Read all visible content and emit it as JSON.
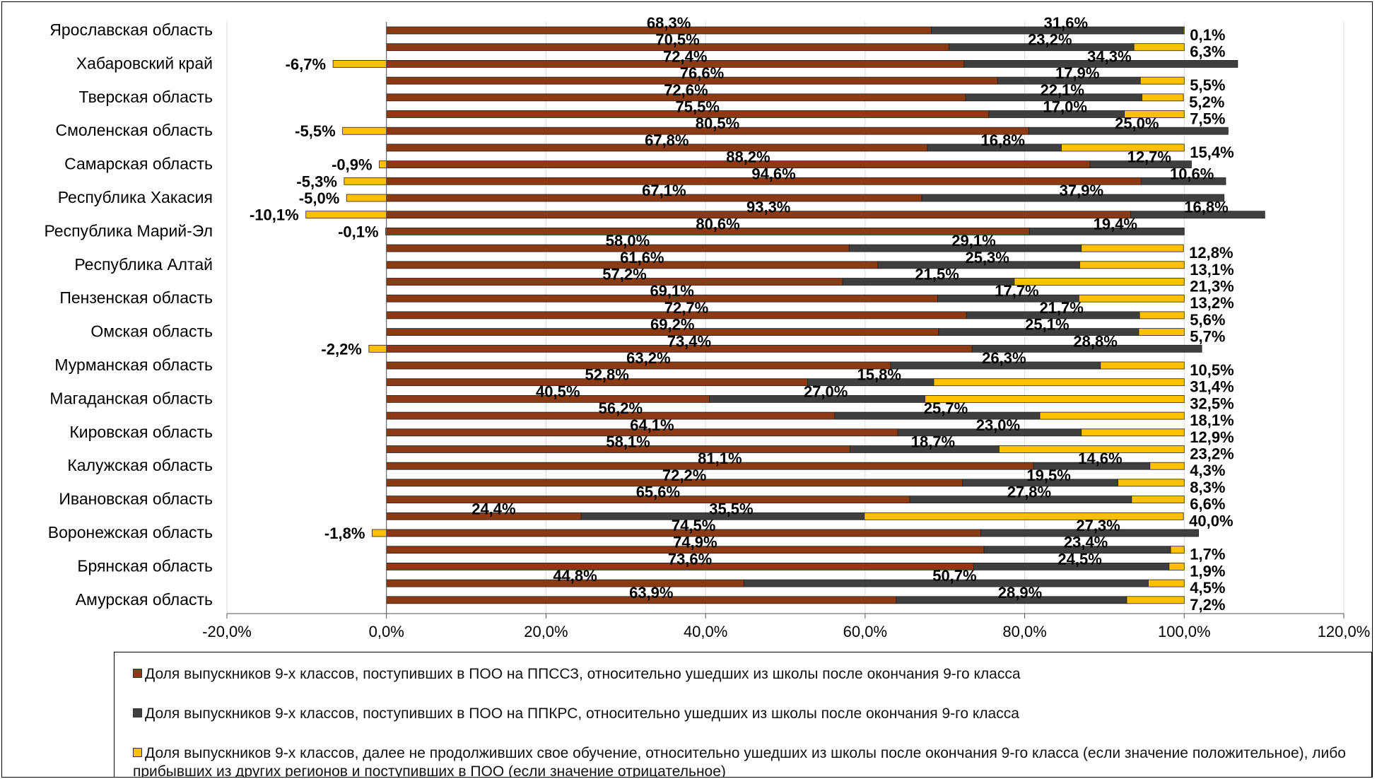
{
  "chart_data": {
    "type": "bar",
    "orientation": "horizontal",
    "stacked": true,
    "xlim": [
      -0.2,
      1.2
    ],
    "x_ticks": [
      {
        "value": -0.2,
        "label": "-20,0%"
      },
      {
        "value": 0.0,
        "label": "0,0%"
      },
      {
        "value": 0.2,
        "label": "20,0%"
      },
      {
        "value": 0.4,
        "label": "40,0%"
      },
      {
        "value": 0.6,
        "label": "60,0%"
      },
      {
        "value": 0.8,
        "label": "80,0%"
      },
      {
        "value": 1.0,
        "label": "100,0%"
      },
      {
        "value": 1.2,
        "label": "120,0%"
      }
    ],
    "grid": "vertical",
    "legend_position": "bottom",
    "region_labels": [
      "Ярославская область",
      "Хабаровский край",
      "Тверская область",
      "Смоленская область",
      "Самарская область",
      "Республика Хакасия",
      "Республика Марий-Эл",
      "Республика Алтай",
      "Пензенская область",
      "Омская область",
      "Мурманская область",
      "Магаданская область",
      "Кировская область",
      "Калужская область",
      "Ивановская область",
      "Воронежская область",
      "Брянская область",
      "Амурская область"
    ],
    "series": [
      {
        "name": "Доля выпускников 9-х классов, поступивших в ПОО на ППССЗ, относительно ушедших из школы после окончания 9-го класса",
        "color": "#8B3A14"
      },
      {
        "name": "Доля выпускников 9-х классов, поступивших в ПОО на ППКРС, относительно ушедших из школы после окончания 9-го класса",
        "color": "#3F3F3F"
      },
      {
        "name": "Доля выпускников 9-х классов, далее не продолживших свое обучение, относительно ушедших из школы после окончания 9-го класса (если значение положительное), либо прибывших из других регионов и поступивших в ПОО (если значение отрицательное)",
        "color": "#FFC000"
      }
    ],
    "rows": [
      {
        "values": [
          0.683,
          0.316,
          0.001
        ],
        "labels": [
          "68,3%",
          "31,6%",
          "0,1%"
        ]
      },
      {
        "values": [
          0.705,
          0.232,
          0.063
        ],
        "labels": [
          "70,5%",
          "23,2%",
          "6,3%"
        ]
      },
      {
        "values": [
          0.724,
          0.343,
          -0.067
        ],
        "labels": [
          "72,4%",
          "34,3%",
          "-6,7%"
        ]
      },
      {
        "values": [
          0.766,
          0.179,
          0.055
        ],
        "labels": [
          "76,6%",
          "17,9%",
          "5,5%"
        ]
      },
      {
        "values": [
          0.726,
          0.221,
          0.052
        ],
        "labels": [
          "72,6%",
          "22,1%",
          "5,2%"
        ]
      },
      {
        "values": [
          0.755,
          0.17,
          0.075
        ],
        "labels": [
          "75,5%",
          "17,0%",
          "7,5%"
        ]
      },
      {
        "values": [
          0.805,
          0.25,
          -0.055
        ],
        "labels": [
          "80,5%",
          "25,0%",
          "-5,5%"
        ]
      },
      {
        "values": [
          0.678,
          0.168,
          0.154
        ],
        "labels": [
          "67,8%",
          "16,8%",
          "15,4%"
        ]
      },
      {
        "values": [
          0.882,
          0.127,
          -0.009
        ],
        "labels": [
          "88,2%",
          "12,7%",
          "-0,9%"
        ]
      },
      {
        "values": [
          0.946,
          0.106,
          -0.053
        ],
        "labels": [
          "94,6%",
          "10,6%",
          "-5,3%"
        ]
      },
      {
        "values": [
          0.671,
          0.379,
          -0.05
        ],
        "labels": [
          "67,1%",
          "37,9%",
          "-5,0%"
        ]
      },
      {
        "values": [
          0.933,
          0.168,
          -0.101
        ],
        "labels": [
          "93,3%",
          "16,8%",
          "-10,1%"
        ]
      },
      {
        "values": [
          0.806,
          0.194,
          -0.001
        ],
        "labels": [
          "80,6%",
          "19,4%",
          "-0,1%"
        ]
      },
      {
        "values": [
          0.58,
          0.291,
          0.128
        ],
        "labels": [
          "58,0%",
          "29,1%",
          "12,8%"
        ]
      },
      {
        "values": [
          0.616,
          0.253,
          0.131
        ],
        "labels": [
          "61,6%",
          "25,3%",
          "13,1%"
        ]
      },
      {
        "values": [
          0.572,
          0.215,
          0.213
        ],
        "labels": [
          "57,2%",
          "21,5%",
          "21,3%"
        ]
      },
      {
        "values": [
          0.691,
          0.177,
          0.132
        ],
        "labels": [
          "69,1%",
          "17,7%",
          "13,2%"
        ]
      },
      {
        "values": [
          0.727,
          0.217,
          0.056
        ],
        "labels": [
          "72,7%",
          "21,7%",
          "5,6%"
        ]
      },
      {
        "values": [
          0.692,
          0.251,
          0.057
        ],
        "labels": [
          "69,2%",
          "25,1%",
          "5,7%"
        ]
      },
      {
        "values": [
          0.734,
          0.288,
          -0.022
        ],
        "labels": [
          "73,4%",
          "28,8%",
          "-2,2%"
        ]
      },
      {
        "values": [
          0.632,
          0.263,
          0.105
        ],
        "labels": [
          "63,2%",
          "26,3%",
          "10,5%"
        ]
      },
      {
        "values": [
          0.528,
          0.158,
          0.314
        ],
        "labels": [
          "52,8%",
          "15,8%",
          "31,4%"
        ]
      },
      {
        "values": [
          0.405,
          0.27,
          0.325
        ],
        "labels": [
          "40,5%",
          "27,0%",
          "32,5%"
        ]
      },
      {
        "values": [
          0.562,
          0.257,
          0.181
        ],
        "labels": [
          "56,2%",
          "25,7%",
          "18,1%"
        ]
      },
      {
        "values": [
          0.641,
          0.23,
          0.129
        ],
        "labels": [
          "64,1%",
          "23,0%",
          "12,9%"
        ]
      },
      {
        "values": [
          0.581,
          0.187,
          0.232
        ],
        "labels": [
          "58,1%",
          "18,7%",
          "23,2%"
        ]
      },
      {
        "values": [
          0.811,
          0.146,
          0.043
        ],
        "labels": [
          "81,1%",
          "14,6%",
          "4,3%"
        ]
      },
      {
        "values": [
          0.722,
          0.195,
          0.083
        ],
        "labels": [
          "72,2%",
          "19,5%",
          "8,3%"
        ]
      },
      {
        "values": [
          0.656,
          0.278,
          0.066
        ],
        "labels": [
          "65,6%",
          "27,8%",
          "6,6%"
        ]
      },
      {
        "values": [
          0.244,
          0.355,
          0.4
        ],
        "labels": [
          "24,4%",
          "35,5%",
          "40,0%"
        ]
      },
      {
        "values": [
          0.745,
          0.273,
          -0.018
        ],
        "labels": [
          "74,5%",
          "27,3%",
          "-1,8%"
        ]
      },
      {
        "values": [
          0.749,
          0.234,
          0.017
        ],
        "labels": [
          "74,9%",
          "23,4%",
          "1,7%"
        ]
      },
      {
        "values": [
          0.736,
          0.245,
          0.019
        ],
        "labels": [
          "73,6%",
          "24,5%",
          "1,9%"
        ]
      },
      {
        "values": [
          0.448,
          0.507,
          0.045
        ],
        "labels": [
          "44,8%",
          "50,7%",
          "4,5%"
        ]
      },
      {
        "values": [
          0.639,
          0.289,
          0.072
        ],
        "labels": [
          "63,9%",
          "28,9%",
          "7,2%"
        ]
      }
    ]
  }
}
